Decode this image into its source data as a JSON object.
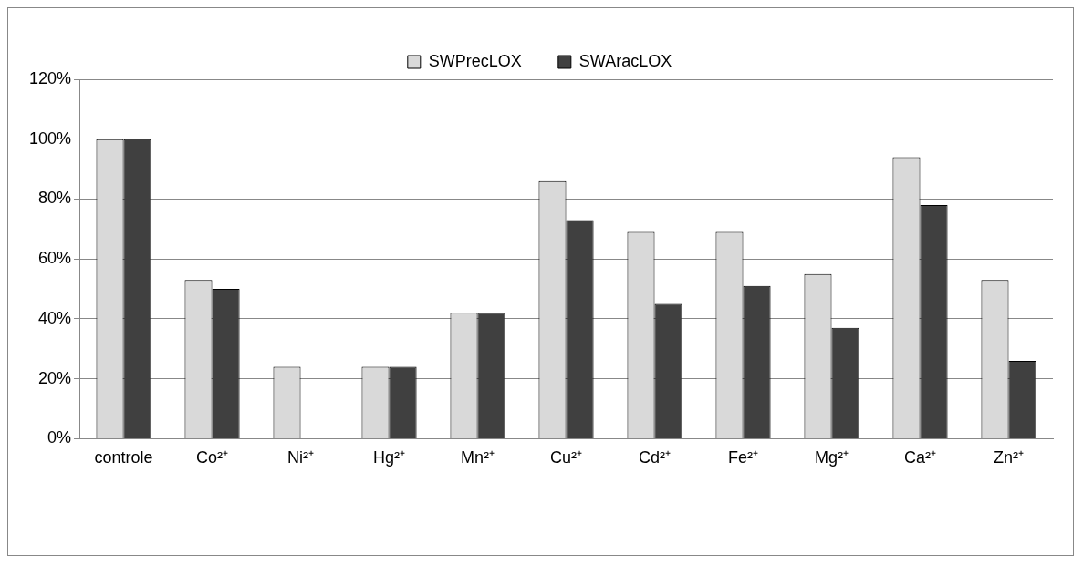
{
  "chart_data": {
    "type": "bar",
    "categories": [
      "controle",
      "Co²⁺",
      "Ni²⁺",
      "Hg²⁺",
      "Mn²⁺",
      "Cu²⁺",
      "Cd²⁺",
      "Fe²⁺",
      "Mg²⁺",
      "Ca²⁺",
      "Zn²⁺"
    ],
    "series": [
      {
        "name": "SWPrecLOX",
        "color": "#d9d9d9",
        "values": [
          100,
          53,
          24,
          24,
          42,
          86,
          69,
          69,
          55,
          94,
          53
        ]
      },
      {
        "name": "SWAracLOX",
        "color": "#404040",
        "values": [
          100,
          50,
          0,
          24,
          42,
          73,
          45,
          51,
          37,
          78,
          26
        ]
      }
    ],
    "ylim": [
      0,
      120
    ],
    "yticks": [
      {
        "value": 0,
        "label": "0%"
      },
      {
        "value": 20,
        "label": "20%"
      },
      {
        "value": 40,
        "label": "40%"
      },
      {
        "value": 60,
        "label": "60%"
      },
      {
        "value": 80,
        "label": "80%"
      },
      {
        "value": 100,
        "label": "100%"
      },
      {
        "value": 120,
        "label": "120%"
      }
    ],
    "grid": "y",
    "legend": "top"
  }
}
